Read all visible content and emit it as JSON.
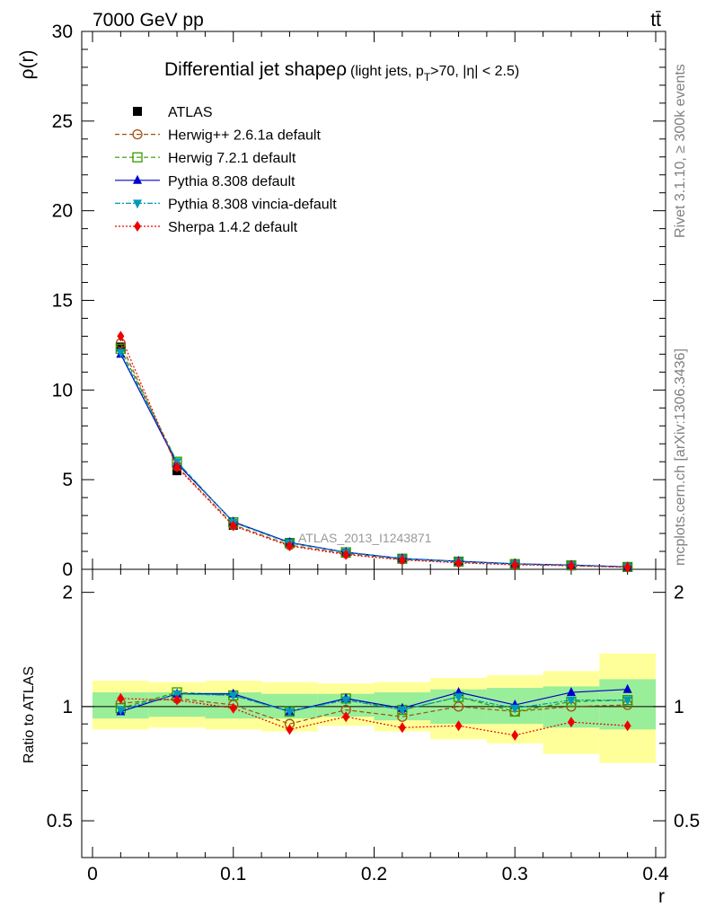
{
  "header": {
    "left": "7000 GeV pp",
    "right": "tt̄"
  },
  "side_labels": {
    "rivet": "Rivet 3.1.10, ≥ 300k events",
    "mcplots": "mcplots.cern.ch [arXiv:1306.3436]"
  },
  "chart_data": {
    "type": "line",
    "title_main": "Differential jet shape",
    "title_symbol": "ρ",
    "title_detail": "(light jets, p",
    "title_sub": "T",
    "title_rest": ">70, |η| < 2.5)",
    "watermark": "ATLAS_2013_I1243871",
    "xlabel": "r",
    "ylabel": "ρ(r)",
    "ratio_ylabel": "Ratio to ATLAS",
    "xlim": [
      0,
      0.4
    ],
    "ylim": [
      0,
      30
    ],
    "ratio_ylim": [
      0.4,
      2.3
    ],
    "x_ticks": [
      "0",
      "0.1",
      "0.2",
      "0.3",
      "0.4"
    ],
    "y_ticks": [
      "0",
      "5",
      "10",
      "15",
      "20",
      "25",
      "30"
    ],
    "ratio_ticks": [
      "0.5",
      "1",
      "2"
    ],
    "x": [
      0.02,
      0.06,
      0.1,
      0.14,
      0.18,
      0.22,
      0.26,
      0.3,
      0.34,
      0.38
    ],
    "bin_edges": [
      0,
      0.04,
      0.08,
      0.12,
      0.16,
      0.2,
      0.24,
      0.28,
      0.32,
      0.36,
      0.4
    ],
    "data": {
      "name": "ATLAS",
      "values": [
        12.4,
        5.5,
        2.45,
        1.5,
        0.9,
        0.6,
        0.4,
        0.3,
        0.22,
        0.12
      ],
      "band_yellow": [
        [
          0.87,
          1.17
        ],
        [
          0.88,
          1.16
        ],
        [
          0.87,
          1.17
        ],
        [
          0.86,
          1.16
        ],
        [
          0.89,
          1.15
        ],
        [
          0.86,
          1.16
        ],
        [
          0.82,
          1.19
        ],
        [
          0.8,
          1.21
        ],
        [
          0.75,
          1.24
        ],
        [
          0.71,
          1.38
        ]
      ],
      "band_green": [
        [
          0.93,
          1.09
        ],
        [
          0.94,
          1.09
        ],
        [
          0.93,
          1.09
        ],
        [
          0.93,
          1.08
        ],
        [
          0.94,
          1.08
        ],
        [
          0.92,
          1.09
        ],
        [
          0.9,
          1.11
        ],
        [
          0.9,
          1.12
        ],
        [
          0.88,
          1.13
        ],
        [
          0.87,
          1.18
        ]
      ]
    },
    "series": [
      {
        "name": "Herwig++ 2.6.1a default",
        "color": "#a0520d",
        "dash": "5,3",
        "marker": "circle-open",
        "values": [
          12.6,
          5.75,
          2.48,
          1.35,
          0.88,
          0.56,
          0.4,
          0.29,
          0.21,
          0.12
        ],
        "ratio": [
          1.02,
          1.05,
          1.01,
          0.9,
          0.98,
          0.94,
          1.0,
          0.97,
          1.0,
          1.01
        ]
      },
      {
        "name": "Herwig 7.2.1 default",
        "color": "#339900",
        "dash": "5,3",
        "marker": "square-open",
        "values": [
          12.3,
          6.0,
          2.62,
          1.46,
          0.95,
          0.59,
          0.43,
          0.29,
          0.22,
          0.13
        ],
        "ratio": [
          0.99,
          1.09,
          1.07,
          0.97,
          1.05,
          0.98,
          1.06,
          0.97,
          1.03,
          1.04
        ]
      },
      {
        "name": "Pythia 8.308 default",
        "color": "#0000cc",
        "dash": "",
        "marker": "triangle-up",
        "values": [
          12.0,
          5.9,
          2.65,
          1.5,
          0.95,
          0.6,
          0.45,
          0.31,
          0.24,
          0.14
        ],
        "ratio": [
          0.97,
          1.08,
          1.08,
          0.97,
          1.05,
          0.99,
          1.09,
          1.01,
          1.09,
          1.11
        ]
      },
      {
        "name": "Pythia 8.308 vincia-default",
        "color": "#0099bb",
        "dash": "6,2,2,2",
        "marker": "triangle-down",
        "values": [
          12.1,
          6.0,
          2.62,
          1.47,
          0.94,
          0.59,
          0.43,
          0.3,
          0.23,
          0.13
        ],
        "ratio": [
          0.98,
          1.08,
          1.07,
          0.97,
          1.04,
          0.98,
          1.06,
          0.99,
          1.04,
          1.04
        ]
      },
      {
        "name": "Sherpa 1.4.2 default",
        "color": "#ee0000",
        "dash": "2,2",
        "marker": "diamond",
        "values": [
          13.0,
          5.7,
          2.42,
          1.3,
          0.82,
          0.52,
          0.36,
          0.25,
          0.2,
          0.11
        ],
        "ratio": [
          1.05,
          1.04,
          0.99,
          0.87,
          0.94,
          0.88,
          0.89,
          0.84,
          0.91,
          0.89
        ]
      }
    ]
  }
}
